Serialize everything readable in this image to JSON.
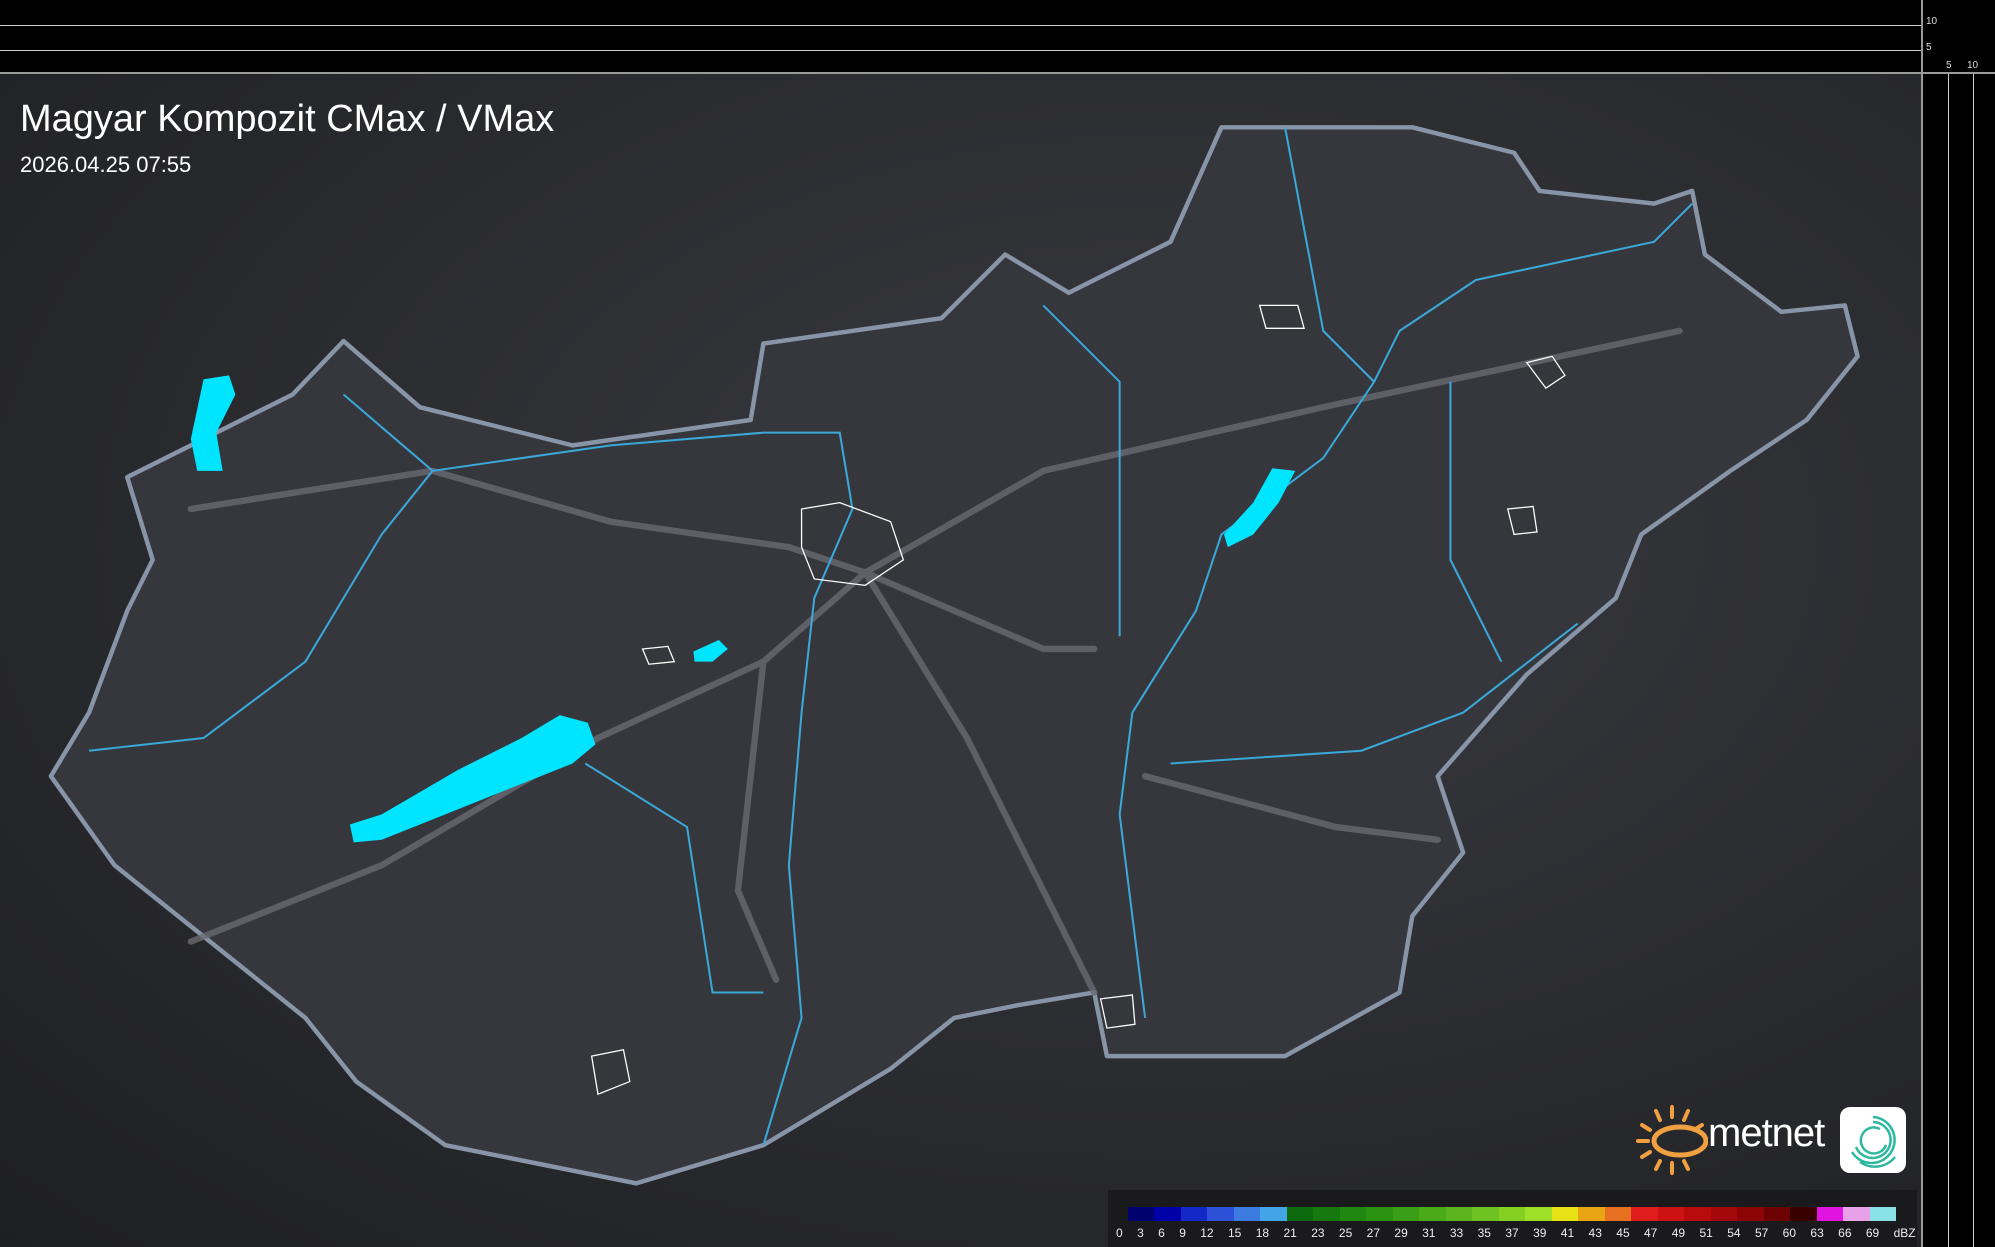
{
  "header": {
    "title": "Magyar Kompozit CMax / VMax",
    "timestamp": "2026.04.25 07:55"
  },
  "side_scales": {
    "vertical_ticks": [
      "10",
      "5"
    ],
    "horizontal_ticks": [
      "5",
      "10"
    ]
  },
  "legend": {
    "unit": "dBZ",
    "labels": [
      "0",
      "3",
      "6",
      "9",
      "12",
      "15",
      "18",
      "21",
      "23",
      "25",
      "27",
      "29",
      "31",
      "33",
      "35",
      "37",
      "39",
      "41",
      "43",
      "45",
      "47",
      "49",
      "51",
      "54",
      "57",
      "60",
      "63",
      "66",
      "69"
    ],
    "colors": [
      "#00006e",
      "#0000a8",
      "#1428c8",
      "#2c50d8",
      "#3c7ce0",
      "#44a4e8",
      "#0e6a0e",
      "#187810",
      "#208810",
      "#2c9212",
      "#3a9e16",
      "#4aaa18",
      "#5cb41e",
      "#6ec222",
      "#86d024",
      "#9ee028",
      "#e6e214",
      "#e8a412",
      "#e67020",
      "#e01c1c",
      "#cc1212",
      "#b80c0c",
      "#a40808",
      "#8c0404",
      "#6c0202",
      "#380000",
      "#e014e0",
      "#e8a0e8",
      "#88e2e8"
    ]
  },
  "branding": {
    "logo_text": "metnet",
    "sun_color": "#f0a040",
    "icon_color": "#2eb8a0"
  },
  "map": {
    "border_color": "#8a9ab0",
    "river_color": "#3aa8d8",
    "lake_color": "#00e5ff",
    "road_color": "#6a6a70"
  }
}
